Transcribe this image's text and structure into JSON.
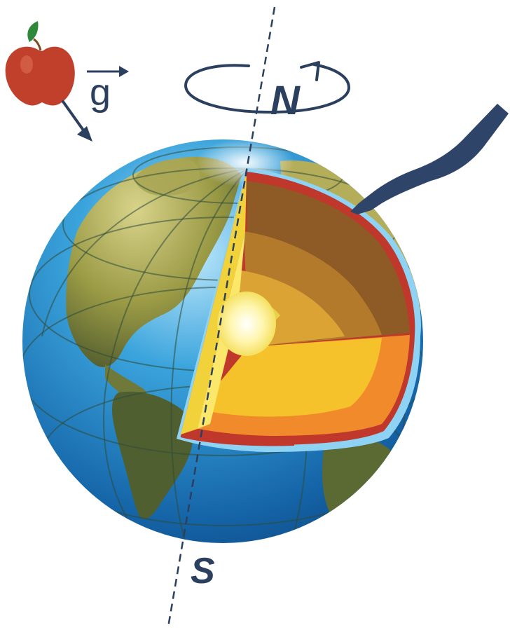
{
  "labels": {
    "gravity": "g",
    "north": "N",
    "south": "S"
  },
  "colors": {
    "ocean": "#1e88c8",
    "ocean_light": "#8fd3f4",
    "land": "#a7a548",
    "land_dark": "#4d5a2e",
    "crust": "#c0382b",
    "upper_mantle": "#8e5a25",
    "lower_mantle": "#d18e2c",
    "outer_core": "#f2b42f",
    "inner_core": "#fff4a0",
    "axis": "#2b3f5e",
    "apple": "#c0402c",
    "leaf": "#3d8a3a"
  },
  "icons": {
    "apple": "apple-icon",
    "scalpel": "scalpel-icon",
    "rotation": "rotation-arrow-icon"
  }
}
